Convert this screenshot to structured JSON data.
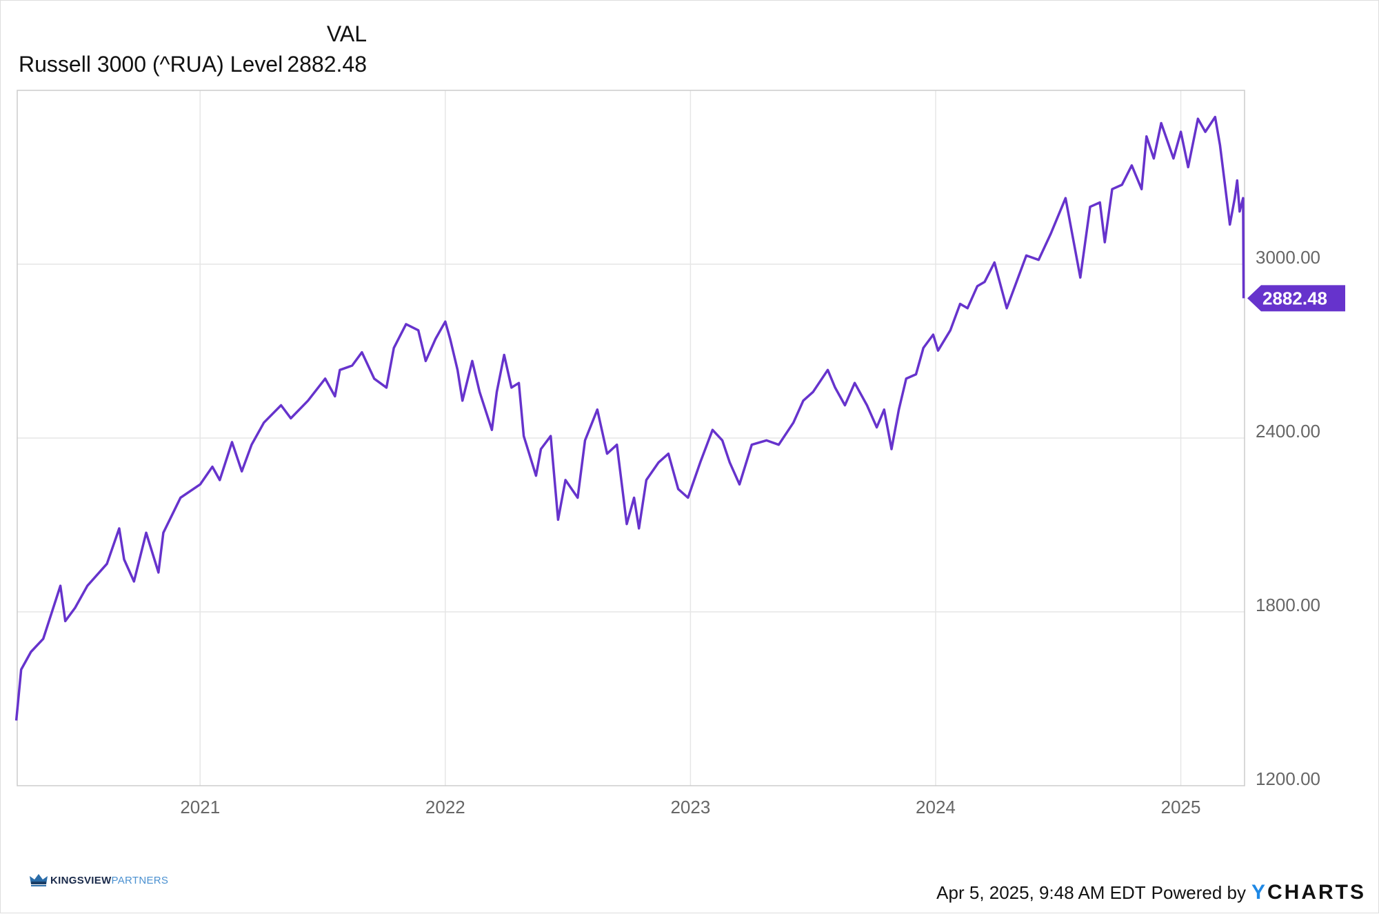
{
  "chart_data": {
    "type": "line",
    "title": "",
    "legend": {
      "header": "VAL",
      "series_name": "Russell 3000 (^RUA) Level",
      "series_value": "2882.48"
    },
    "xlabel": "",
    "ylabel": "",
    "xlim": [
      2020.254,
      2025.26
    ],
    "ylim": [
      1200,
      3600
    ],
    "x_ticks": [
      2021,
      2022,
      2023,
      2024,
      2025
    ],
    "x_tick_labels": [
      "2021",
      "2022",
      "2023",
      "2024",
      "2025"
    ],
    "y_ticks": [
      1200,
      1800,
      2400,
      3000
    ],
    "y_tick_labels": [
      "1200.00",
      "1800.00",
      "2400.00",
      "3000.00"
    ],
    "grid": true,
    "color": "#6633cc",
    "last_value_label": "2882.48",
    "series": [
      {
        "name": "Russell 3000 (^RUA) Level",
        "x": [
          2020.25,
          2020.27,
          2020.31,
          2020.36,
          2020.43,
          2020.45,
          2020.49,
          2020.54,
          2020.62,
          2020.67,
          2020.69,
          2020.73,
          2020.78,
          2020.83,
          2020.85,
          2020.92,
          2021.0,
          2021.05,
          2021.08,
          2021.13,
          2021.17,
          2021.21,
          2021.26,
          2021.33,
          2021.37,
          2021.44,
          2021.51,
          2021.55,
          2021.57,
          2021.62,
          2021.66,
          2021.71,
          2021.76,
          2021.79,
          2021.84,
          2021.89,
          2021.92,
          2021.96,
          2022.0,
          2022.02,
          2022.05,
          2022.07,
          2022.11,
          2022.14,
          2022.19,
          2022.21,
          2022.24,
          2022.27,
          2022.3,
          2022.32,
          2022.37,
          2022.39,
          2022.43,
          2022.46,
          2022.49,
          2022.54,
          2022.57,
          2022.62,
          2022.66,
          2022.7,
          2022.74,
          2022.77,
          2022.79,
          2022.82,
          2022.87,
          2022.91,
          2022.95,
          2022.99,
          2023.04,
          2023.09,
          2023.13,
          2023.16,
          2023.2,
          2023.25,
          2023.31,
          2023.36,
          2023.42,
          2023.46,
          2023.5,
          2023.56,
          2023.59,
          2023.63,
          2023.67,
          2023.72,
          2023.76,
          2023.79,
          2023.82,
          2023.85,
          2023.88,
          2023.92,
          2023.95,
          2023.99,
          2024.01,
          2024.06,
          2024.1,
          2024.13,
          2024.17,
          2024.2,
          2024.24,
          2024.29,
          2024.33,
          2024.37,
          2024.42,
          2024.47,
          2024.53,
          2024.56,
          2024.59,
          2024.63,
          2024.67,
          2024.69,
          2024.72,
          2024.76,
          2024.8,
          2024.84,
          2024.86,
          2024.89,
          2024.92,
          2024.97,
          2025.0,
          2025.03,
          2025.07,
          2025.1,
          2025.14,
          2025.16,
          2025.18,
          2025.2,
          2025.22,
          2025.23,
          2025.24,
          2025.254,
          2025.256
        ],
        "y": [
          1425,
          1601,
          1662,
          1707,
          1890,
          1768,
          1814,
          1890,
          1966,
          2088,
          1981,
          1905,
          2073,
          1936,
          2073,
          2194,
          2240,
          2301,
          2255,
          2386,
          2285,
          2377,
          2453,
          2513,
          2468,
          2529,
          2605,
          2544,
          2635,
          2650,
          2696,
          2605,
          2574,
          2711,
          2793,
          2772,
          2666,
          2742,
          2802,
          2742,
          2635,
          2529,
          2666,
          2559,
          2428,
          2559,
          2687,
          2574,
          2590,
          2407,
          2270,
          2362,
          2407,
          2118,
          2255,
          2194,
          2392,
          2498,
          2346,
          2377,
          2103,
          2194,
          2088,
          2255,
          2316,
          2346,
          2224,
          2194,
          2316,
          2428,
          2392,
          2316,
          2240,
          2377,
          2392,
          2377,
          2453,
          2529,
          2559,
          2635,
          2574,
          2513,
          2590,
          2513,
          2437,
          2498,
          2362,
          2498,
          2605,
          2620,
          2711,
          2757,
          2702,
          2772,
          2863,
          2848,
          2924,
          2939,
          3006,
          2848,
          2939,
          3030,
          3015,
          3106,
          3228,
          3091,
          2954,
          3198,
          3213,
          3076,
          3259,
          3274,
          3341,
          3259,
          3441,
          3365,
          3487,
          3365,
          3457,
          3335,
          3502,
          3457,
          3508,
          3411,
          3274,
          3137,
          3228,
          3289,
          3182,
          3228,
          2882.48
        ]
      }
    ]
  },
  "footer": {
    "logo_main": "KINGSVIEW",
    "logo_sub": "PARTNERS",
    "timestamp": "Apr 5, 2025, 9:48 AM EDT",
    "powered_by": "Powered by",
    "brand_y": "Y",
    "brand_rest": "CHARTS"
  }
}
